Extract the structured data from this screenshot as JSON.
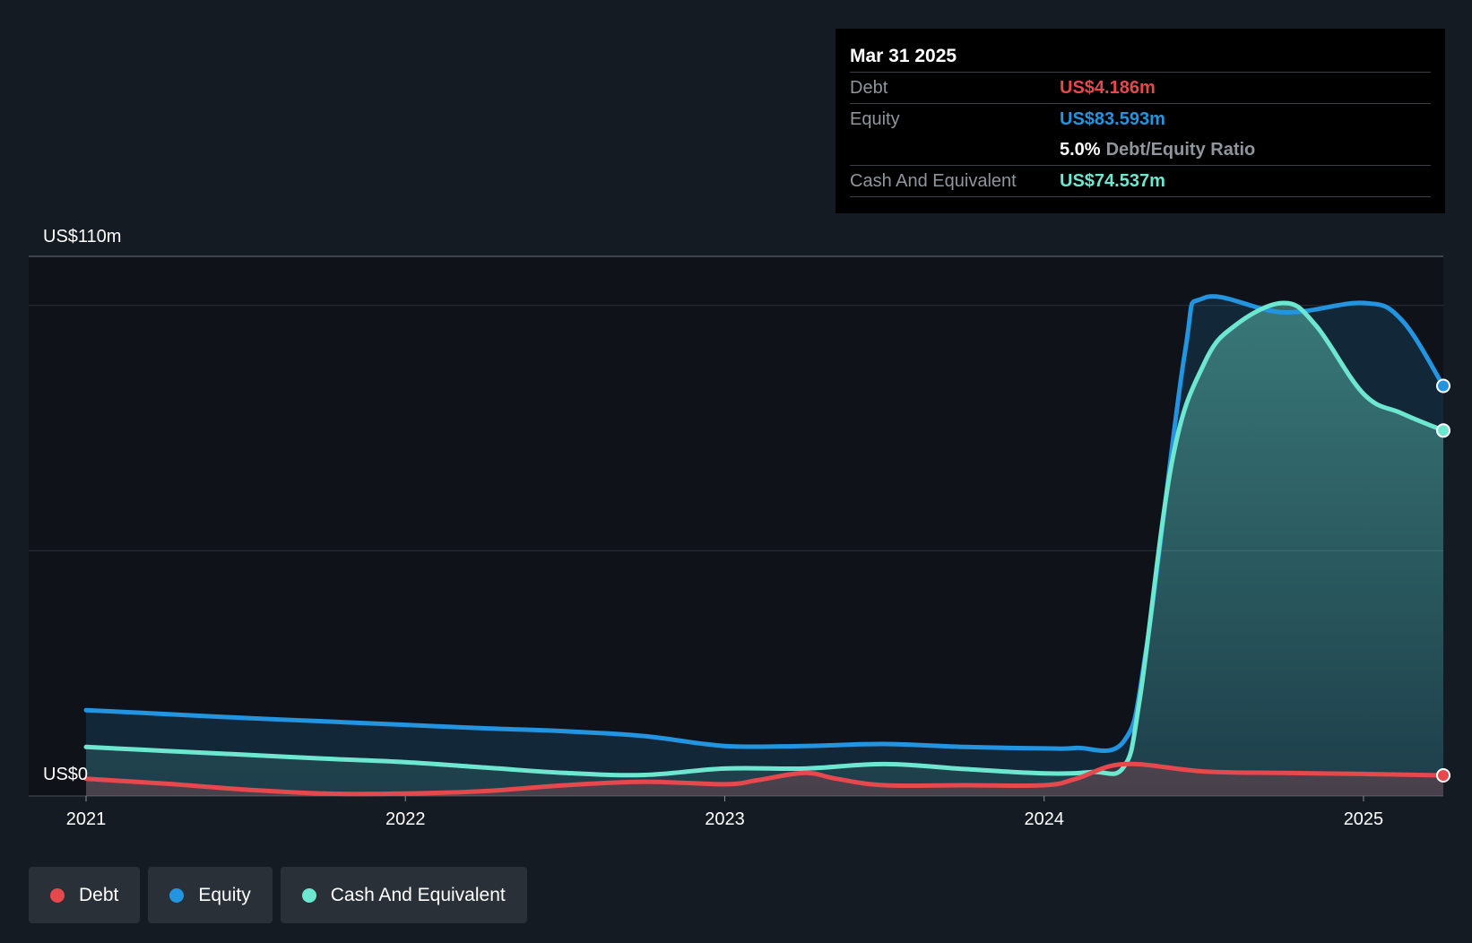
{
  "tooltip": {
    "date": "Mar 31 2025",
    "debt_label": "Debt",
    "debt_value": "US$4.186m",
    "equity_label": "Equity",
    "equity_value": "US$83.593m",
    "ratio_value": "5.0%",
    "ratio_label": "Debt/Equity Ratio",
    "cash_label": "Cash And Equivalent",
    "cash_value": "US$74.537m"
  },
  "legend": [
    {
      "label": "Debt",
      "color": "#e5484d"
    },
    {
      "label": "Equity",
      "color": "#2394df"
    },
    {
      "label": "Cash And Equivalent",
      "color": "#6ee7d0"
    }
  ],
  "chart_data": {
    "type": "area",
    "title": "",
    "xlabel": "",
    "ylabel": "",
    "y_top_label": "US$110m",
    "y_zero_label": "US$0",
    "ylim": [
      0,
      110
    ],
    "xlim": [
      2021.0,
      2025.25
    ],
    "x_ticks": [
      {
        "value": 2021,
        "label": "2021"
      },
      {
        "value": 2022,
        "label": "2022"
      },
      {
        "value": 2023,
        "label": "2023"
      },
      {
        "value": 2024,
        "label": "2024"
      },
      {
        "value": 2025,
        "label": "2025"
      }
    ],
    "gridlines": [
      0,
      50,
      100
    ],
    "series": [
      {
        "name": "Debt",
        "color": "#e5484d",
        "x": [
          2021.0,
          2021.25,
          2021.5,
          2021.75,
          2022.0,
          2022.25,
          2022.5,
          2022.75,
          2023.0,
          2023.1,
          2023.25,
          2023.35,
          2023.5,
          2023.75,
          2024.0,
          2024.1,
          2024.25,
          2024.5,
          2024.75,
          2025.0,
          2025.25
        ],
        "values": [
          3.5,
          2.5,
          1.3,
          0.5,
          0.5,
          1.0,
          2.2,
          2.9,
          2.4,
          3.2,
          4.7,
          3.5,
          2.2,
          2.2,
          2.2,
          3.5,
          6.5,
          5.0,
          4.7,
          4.5,
          4.2
        ]
      },
      {
        "name": "Equity",
        "color": "#2394df",
        "x": [
          2021.0,
          2021.25,
          2021.5,
          2021.75,
          2022.0,
          2022.25,
          2022.5,
          2022.75,
          2023.0,
          2023.25,
          2023.5,
          2023.75,
          2024.0,
          2024.1,
          2024.25,
          2024.32,
          2024.44,
          2024.5,
          2024.75,
          2025.0,
          2025.12,
          2025.25
        ],
        "values": [
          17.5,
          16.7,
          15.9,
          15.2,
          14.5,
          13.8,
          13.2,
          12.2,
          10.2,
          10.2,
          10.6,
          10.0,
          9.7,
          9.8,
          11.2,
          30.0,
          90.0,
          101.5,
          98.6,
          100.5,
          97.0,
          83.6
        ]
      },
      {
        "name": "Cash And Equivalent",
        "color": "#6ee7d0",
        "x": [
          2021.0,
          2021.25,
          2021.5,
          2021.75,
          2022.0,
          2022.25,
          2022.5,
          2022.75,
          2023.0,
          2023.25,
          2023.5,
          2023.75,
          2024.0,
          2024.15,
          2024.25,
          2024.3,
          2024.4,
          2024.5,
          2024.6,
          2024.75,
          2024.85,
          2025.0,
          2025.12,
          2025.25
        ],
        "values": [
          10.0,
          9.2,
          8.4,
          7.6,
          6.9,
          5.8,
          4.7,
          4.3,
          5.6,
          5.6,
          6.5,
          5.5,
          4.6,
          4.9,
          6.0,
          20.0,
          68.0,
          88.0,
          96.0,
          100.5,
          96.0,
          82.0,
          78.0,
          74.5
        ]
      }
    ]
  }
}
